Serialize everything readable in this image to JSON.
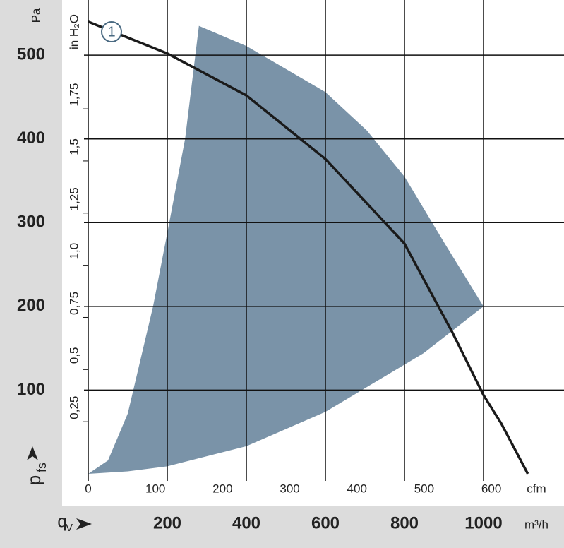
{
  "chart_data": {
    "type": "area",
    "ylabel": "p",
    "ylabel_subscript": "fs",
    "ylabel_unit": "Pa",
    "xlabel": "q",
    "xlabel_subscript": "V",
    "xlabel_unit": "m³/h",
    "x2label": "cfm",
    "y2label": "in H₂O",
    "xlim": [
      0,
      1200
    ],
    "xticks": [
      200,
      400,
      600,
      800,
      1000
    ],
    "ylim": [
      0,
      560
    ],
    "yticks": [
      100,
      200,
      300,
      400,
      500
    ],
    "x2lim": [
      0,
      706
    ],
    "x2ticks": [
      0,
      100,
      200,
      300,
      400,
      500,
      600
    ],
    "y2lim": [
      0,
      2.248
    ],
    "y2ticks": [
      {
        "value": 0.25,
        "label": "0,25"
      },
      {
        "value": 0.5,
        "label": "0,5"
      },
      {
        "value": 0.75,
        "label": "0,75"
      },
      {
        "value": 1.0,
        "label": "1,0"
      },
      {
        "value": 1.25,
        "label": "1,25"
      },
      {
        "value": 1.5,
        "label": "1,5"
      },
      {
        "value": 1.75,
        "label": "1,75"
      }
    ],
    "grid": true,
    "region": {
      "color": "#7a93a8",
      "x": [
        0,
        50,
        100,
        164,
        205,
        245,
        280,
        400,
        600,
        705,
        800,
        902,
        1000,
        848,
        600,
        400,
        200,
        100
      ],
      "y": [
        0,
        16,
        72,
        200,
        300,
        400,
        535,
        511,
        456,
        410,
        355,
        275,
        200,
        144,
        74,
        33,
        9,
        3
      ]
    },
    "series": [
      {
        "name": "1",
        "color": "#1a1a1a",
        "x": [
          0,
          200,
          400,
          600,
          800,
          920,
          1000,
          1045,
          1112
        ],
        "values": [
          540,
          502,
          452,
          376,
          275,
          170,
          94,
          60,
          0
        ]
      }
    ]
  }
}
